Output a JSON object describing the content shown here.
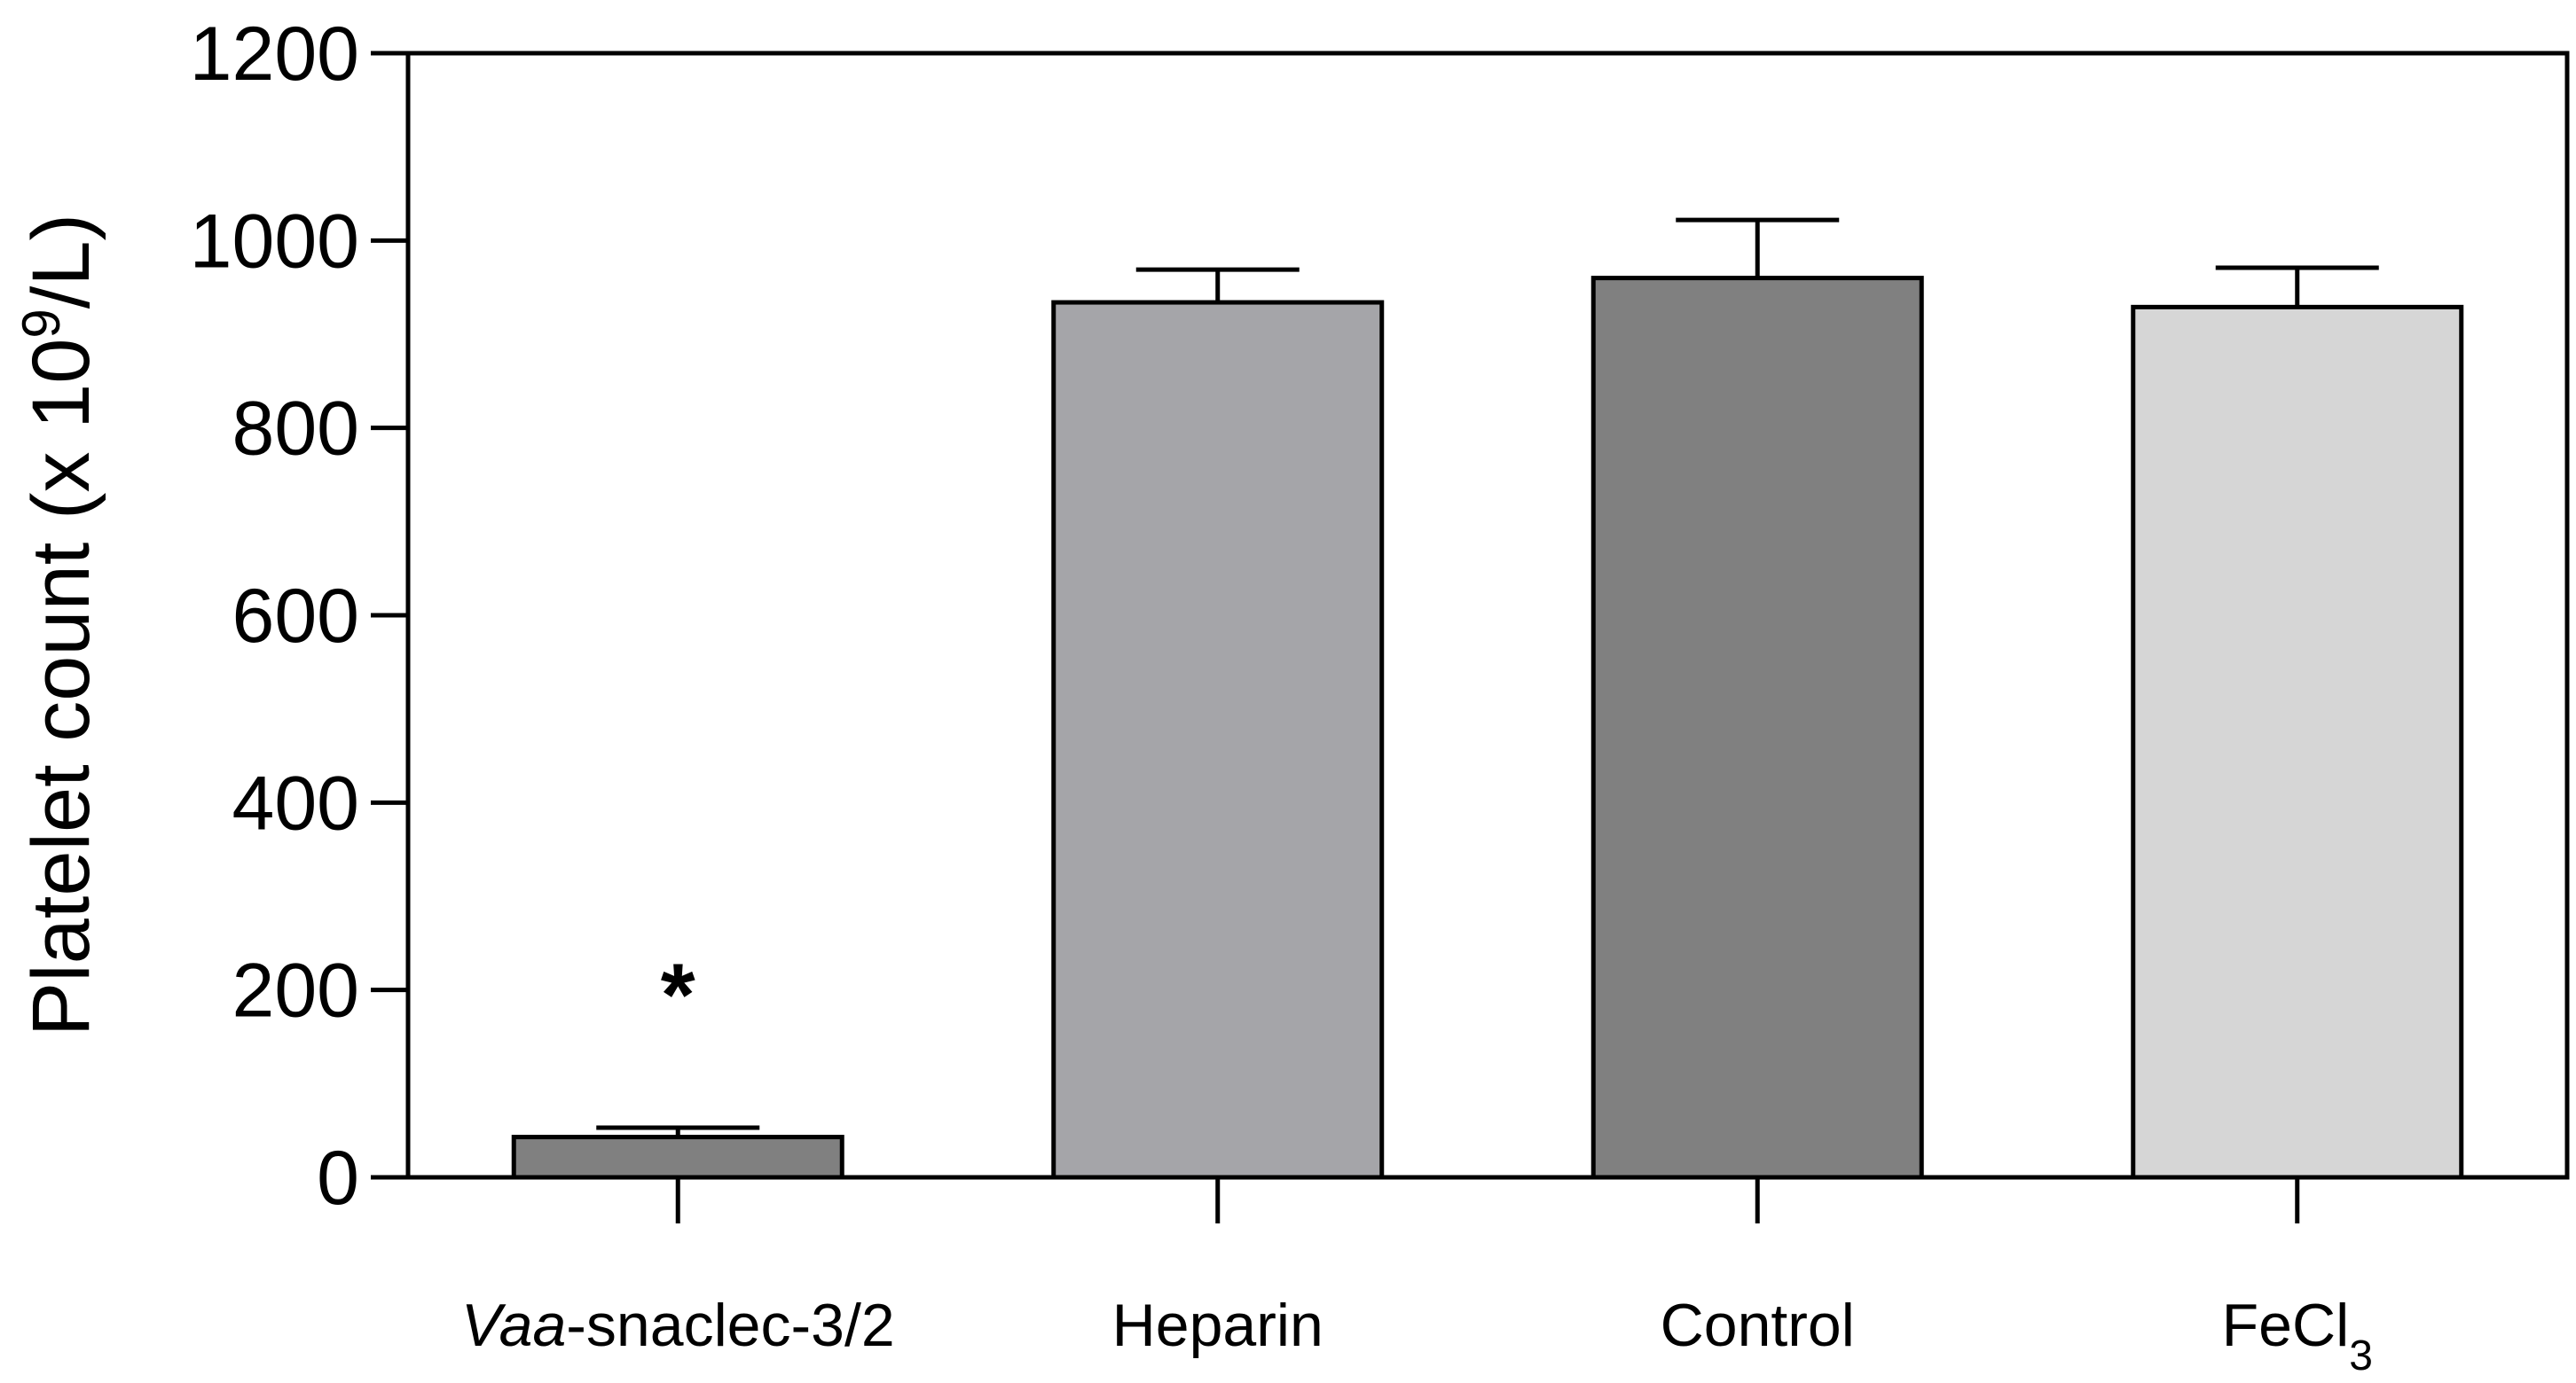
{
  "chart_data": {
    "type": "bar",
    "title": "",
    "xlabel": "",
    "ylabel": {
      "prefix": "Platelet count (x 10",
      "superscript": "9",
      "suffix": "/L)"
    },
    "ylim": [
      0,
      1200
    ],
    "yticks": [
      0,
      200,
      400,
      600,
      800,
      1000,
      1200
    ],
    "categories": [
      {
        "name": "Vaa-snaclec-3/2",
        "parts": [
          {
            "text": "Vaa",
            "style": "italic"
          },
          {
            "text": "-snaclec-3/2"
          }
        ]
      },
      {
        "name": "Heparin",
        "parts": [
          {
            "text": "Heparin"
          }
        ]
      },
      {
        "name": "Control",
        "parts": [
          {
            "text": "Control"
          }
        ]
      },
      {
        "name": "FeCl3",
        "parts": [
          {
            "text": "FeCl"
          },
          {
            "text": "3",
            "style": "subscript"
          }
        ]
      }
    ],
    "values": [
      43,
      934,
      960,
      929
    ],
    "errors": [
      10,
      35,
      62,
      42
    ],
    "colors": [
      "#808080",
      "#a5a5a9",
      "#808080",
      "#d6d6d6"
    ],
    "annotations": [
      {
        "category": "Vaa-snaclec-3/2",
        "text": "*",
        "y": 200
      }
    ]
  }
}
